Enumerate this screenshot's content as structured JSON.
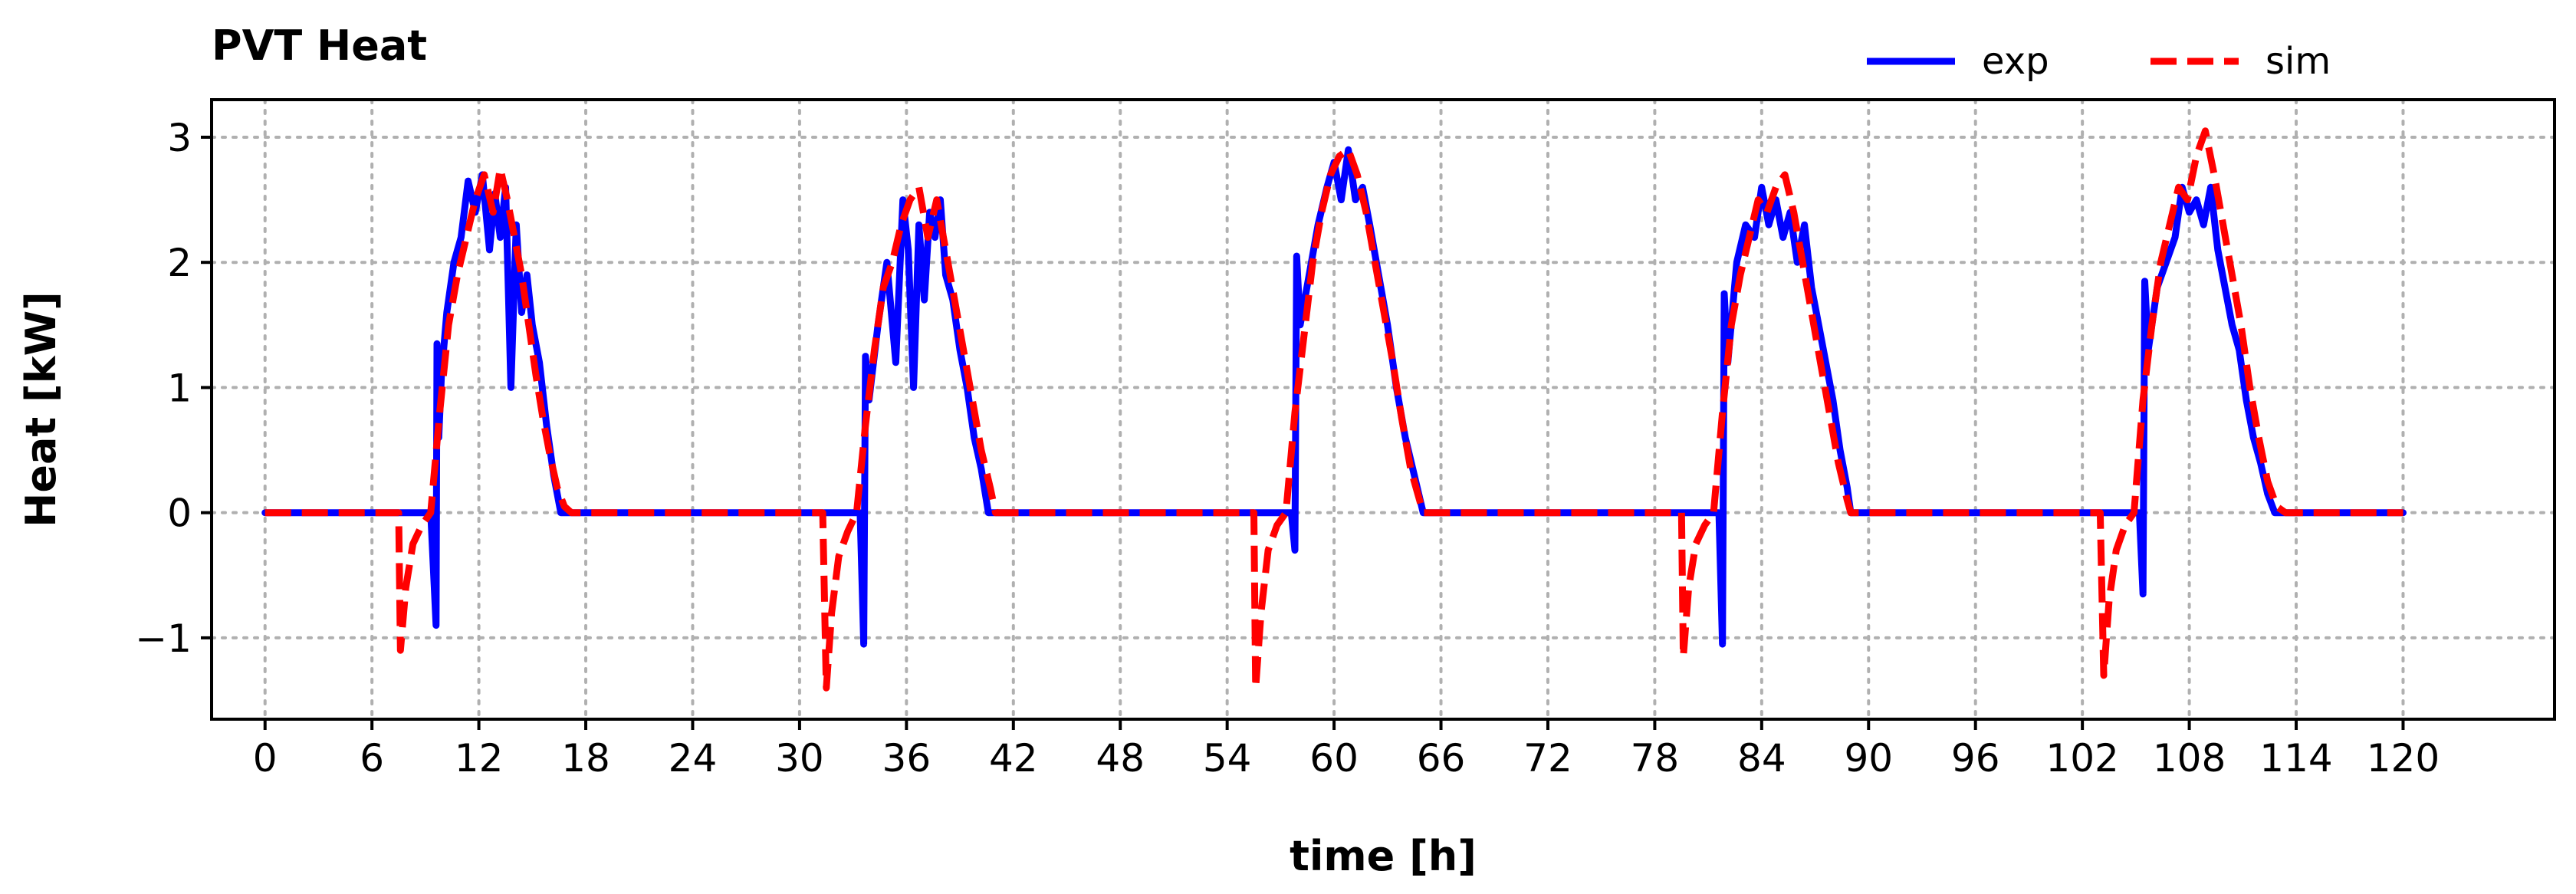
{
  "chart_data": {
    "type": "line",
    "title": "PVT Heat",
    "xlabel": "time [h]",
    "ylabel": "Heat [kW]",
    "xlim": [
      -3,
      128.5
    ],
    "ylim": [
      -1.65,
      3.3
    ],
    "xticks": [
      0,
      6,
      12,
      18,
      24,
      30,
      36,
      42,
      48,
      54,
      60,
      66,
      72,
      78,
      84,
      90,
      96,
      102,
      108,
      114,
      120
    ],
    "yticks": [
      -1,
      0,
      1,
      2,
      3
    ],
    "yticklabels": [
      "−1",
      "0",
      "1",
      "2",
      "3"
    ],
    "grid": true,
    "legend": "top-right",
    "series": [
      {
        "name": "exp",
        "color": "#0000ff",
        "style": "solid",
        "x": [
          0,
          9.3,
          9.6,
          9.65,
          9.75,
          9.9,
          10.2,
          10.6,
          11.0,
          11.4,
          11.8,
          12.2,
          12.6,
          12.9,
          13.2,
          13.5,
          13.8,
          14.1,
          14.4,
          14.7,
          15.0,
          15.4,
          15.8,
          16.2,
          16.6,
          17.0,
          32.0,
          33.4,
          33.6,
          33.7,
          33.9,
          34.4,
          34.9,
          35.4,
          35.8,
          36.1,
          36.4,
          36.7,
          37.0,
          37.3,
          37.6,
          37.9,
          38.2,
          38.6,
          39.0,
          39.4,
          39.8,
          40.2,
          40.6,
          41.0,
          57.0,
          57.6,
          57.8,
          57.9,
          58.1,
          58.6,
          59.1,
          59.6,
          60.0,
          60.4,
          60.8,
          61.2,
          61.6,
          62.0,
          62.5,
          63.0,
          63.5,
          64.0,
          64.5,
          65.0,
          81.0,
          81.6,
          81.8,
          81.9,
          82.1,
          82.6,
          83.1,
          83.6,
          84.0,
          84.4,
          84.8,
          85.2,
          85.6,
          86.0,
          86.4,
          86.8,
          87.2,
          87.6,
          88.0,
          88.4,
          88.8,
          89.0,
          104.8,
          105.2,
          105.4,
          105.5,
          105.7,
          106.2,
          106.7,
          107.2,
          107.6,
          108.0,
          108.4,
          108.8,
          109.2,
          109.6,
          110.0,
          110.4,
          110.8,
          111.2,
          111.6,
          112.0,
          112.4,
          112.8,
          113.0,
          120.0
        ],
        "y": [
          0,
          0,
          -0.9,
          1.35,
          0.6,
          1.1,
          1.6,
          2.0,
          2.2,
          2.65,
          2.4,
          2.7,
          2.1,
          2.55,
          2.2,
          2.6,
          1.0,
          2.3,
          1.6,
          1.9,
          1.5,
          1.2,
          0.7,
          0.3,
          0.0,
          0,
          0,
          0,
          -1.05,
          1.25,
          0.9,
          1.5,
          2.0,
          1.2,
          2.5,
          2.1,
          1.0,
          2.3,
          1.7,
          2.4,
          2.2,
          2.5,
          1.9,
          1.7,
          1.3,
          1.0,
          0.6,
          0.35,
          0.0,
          0,
          0,
          0,
          -0.3,
          2.05,
          1.5,
          1.9,
          2.3,
          2.6,
          2.8,
          2.5,
          2.9,
          2.5,
          2.6,
          2.3,
          1.9,
          1.5,
          1.0,
          0.6,
          0.3,
          0,
          0,
          0,
          -1.05,
          1.75,
          1.2,
          2.0,
          2.3,
          2.2,
          2.6,
          2.3,
          2.5,
          2.2,
          2.4,
          2.0,
          2.3,
          1.8,
          1.5,
          1.2,
          0.9,
          0.5,
          0.2,
          0,
          0,
          0,
          -0.65,
          1.85,
          1.3,
          1.8,
          2.0,
          2.2,
          2.6,
          2.4,
          2.5,
          2.3,
          2.6,
          2.1,
          1.8,
          1.5,
          1.3,
          0.9,
          0.6,
          0.4,
          0.15,
          0.0,
          0,
          0
        ]
      },
      {
        "name": "sim",
        "color": "#ff0000",
        "style": "dashed",
        "x": [
          0,
          7.5,
          7.6,
          7.9,
          8.3,
          8.8,
          9.3,
          9.8,
          10.3,
          10.8,
          11.3,
          11.8,
          12.3,
          12.8,
          13.2,
          13.6,
          14.0,
          14.4,
          14.8,
          15.2,
          15.6,
          16.0,
          16.4,
          16.8,
          17.2,
          31.3,
          31.5,
          31.8,
          32.2,
          32.7,
          33.2,
          33.7,
          34.2,
          34.7,
          35.2,
          35.7,
          36.2,
          36.7,
          37.2,
          37.7,
          38.2,
          38.7,
          39.2,
          39.7,
          40.2,
          40.7,
          41.0,
          55.5,
          55.6,
          55.9,
          56.3,
          56.8,
          57.3,
          57.8,
          58.3,
          58.8,
          59.3,
          59.8,
          60.3,
          60.8,
          61.3,
          61.8,
          62.3,
          62.8,
          63.3,
          63.8,
          64.3,
          64.8,
          65.0,
          79.5,
          79.6,
          79.9,
          80.3,
          80.8,
          81.3,
          81.8,
          82.3,
          82.8,
          83.3,
          83.8,
          84.3,
          84.8,
          85.3,
          85.8,
          86.3,
          86.8,
          87.3,
          87.8,
          88.3,
          88.8,
          89.0,
          103.0,
          103.2,
          103.5,
          103.9,
          104.4,
          104.9,
          105.4,
          105.9,
          106.4,
          106.9,
          107.4,
          107.9,
          108.4,
          108.9,
          109.4,
          109.9,
          110.4,
          110.9,
          111.4,
          111.9,
          112.4,
          112.9,
          113.4,
          113.7,
          120.0
        ],
        "y": [
          0,
          0,
          -1.1,
          -0.6,
          -0.25,
          -0.1,
          0.0,
          0.8,
          1.5,
          1.9,
          2.2,
          2.5,
          2.7,
          2.4,
          2.75,
          2.5,
          2.2,
          1.9,
          1.5,
          1.1,
          0.75,
          0.45,
          0.2,
          0.05,
          0,
          0,
          -1.4,
          -0.8,
          -0.35,
          -0.15,
          0.0,
          0.7,
          1.3,
          1.8,
          2.0,
          2.3,
          2.5,
          2.6,
          2.2,
          2.5,
          2.1,
          1.7,
          1.3,
          0.9,
          0.5,
          0.2,
          0,
          0,
          -1.4,
          -0.8,
          -0.3,
          -0.1,
          0.0,
          0.8,
          1.4,
          2.0,
          2.4,
          2.7,
          2.85,
          2.9,
          2.7,
          2.4,
          2.0,
          1.6,
          1.2,
          0.75,
          0.35,
          0.1,
          0,
          0,
          -1.15,
          -0.6,
          -0.25,
          -0.1,
          0.0,
          0.8,
          1.5,
          1.9,
          2.2,
          2.5,
          2.4,
          2.6,
          2.7,
          2.4,
          2.0,
          1.6,
          1.2,
          0.8,
          0.4,
          0.1,
          0,
          0,
          -1.3,
          -0.7,
          -0.3,
          -0.1,
          0.0,
          0.9,
          1.5,
          2.0,
          2.3,
          2.6,
          2.5,
          2.85,
          3.05,
          2.7,
          2.3,
          1.9,
          1.5,
          1.0,
          0.6,
          0.25,
          0.05,
          0,
          0,
          0
        ]
      }
    ]
  }
}
